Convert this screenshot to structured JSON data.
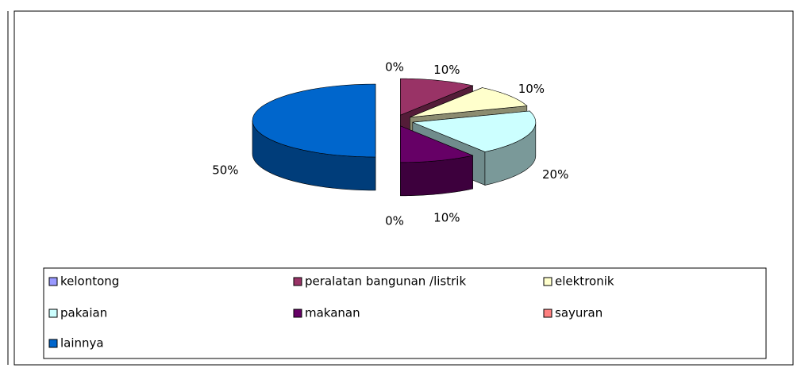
{
  "chart_data": {
    "type": "pie",
    "categories": [
      "kelontong",
      "peralatan bangunan /listrik",
      "elektronik",
      "pakaian",
      "makanan",
      "sayuran",
      "lainnya"
    ],
    "values": [
      0,
      10,
      10,
      20,
      10,
      0,
      50
    ],
    "value_labels": [
      "0%",
      "10%",
      "10%",
      "20%",
      "10%",
      "0%",
      "50%"
    ],
    "colors": [
      "#9999ff",
      "#993366",
      "#ffffcc",
      "#ccffff",
      "#660066",
      "#ff8080",
      "#0066cc"
    ],
    "legend": "bottom"
  }
}
